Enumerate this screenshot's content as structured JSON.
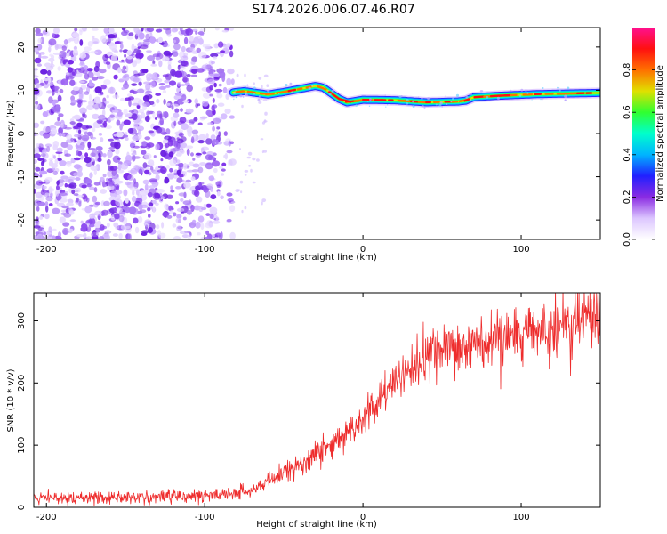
{
  "title": "S174.2026.006.07.46.R07",
  "colors": {
    "snr_line": "#ee2c2c",
    "scatter_purple": "#7a2bea",
    "colormap": [
      "#ffffff",
      "#dcc6ff",
      "#8a2be2",
      "#2020ff",
      "#00b4ff",
      "#00ffcc",
      "#30ff30",
      "#e0e000",
      "#ff7000",
      "#ff1010",
      "#ff1090"
    ]
  },
  "chart_data": [
    {
      "type": "heatmap",
      "name": "spectrogram",
      "xlabel": "Height of straight line (km)",
      "ylabel": "Frequency (Hz)",
      "xlim": [
        -208,
        150
      ],
      "ylim": [
        -24.5,
        24.5
      ],
      "xticks": [
        -200,
        -100,
        0,
        100
      ],
      "yticks": [
        -20,
        -10,
        0,
        10,
        20
      ],
      "noise_region_x": [
        -208,
        -82
      ],
      "colorbar": {
        "label": "Normalized spectral amplitude",
        "range": [
          0,
          1
        ],
        "ticks": [
          0.0,
          0.2,
          0.4,
          0.6,
          0.8
        ]
      },
      "ridge": {
        "x": [
          -82,
          -75,
          -60,
          -50,
          -40,
          -30,
          -25,
          -15,
          -10,
          0,
          20,
          40,
          60,
          65,
          70,
          90,
          110,
          150
        ],
        "freq": [
          9.5,
          9.8,
          9.0,
          9.6,
          10.3,
          11.0,
          10.6,
          8.0,
          7.2,
          7.8,
          7.7,
          7.2,
          7.4,
          7.6,
          8.4,
          8.8,
          9.1,
          9.4
        ]
      }
    },
    {
      "type": "line",
      "name": "snr",
      "xlabel": "Height of straight line (km)",
      "ylabel": "SNR (10 * v/v)",
      "xlim": [
        -208,
        150
      ],
      "ylim": [
        0,
        345
      ],
      "xticks": [
        -200,
        -100,
        0,
        100
      ],
      "yticks": [
        0,
        100,
        200,
        300
      ],
      "trend": {
        "x": [
          -208,
          -150,
          -100,
          -80,
          -60,
          -40,
          -20,
          0,
          20,
          40,
          60,
          80,
          100,
          120,
          140,
          150
        ],
        "y": [
          14,
          16,
          19,
          22,
          40,
          70,
          100,
          140,
          205,
          240,
          255,
          265,
          275,
          285,
          300,
          310
        ]
      }
    }
  ]
}
